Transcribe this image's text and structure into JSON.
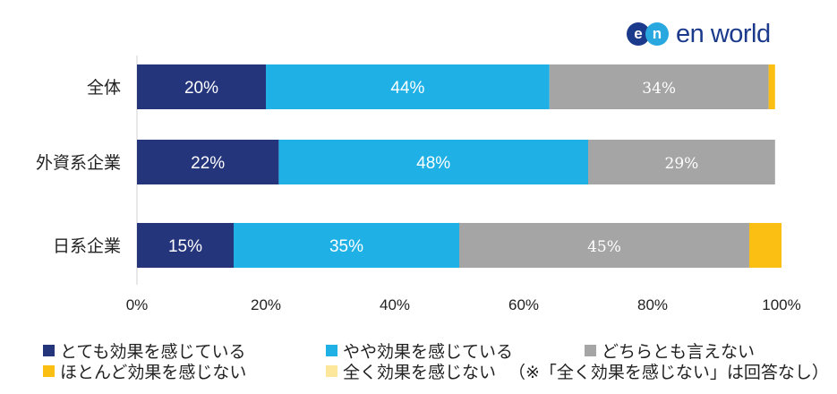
{
  "logo": {
    "text": "en world",
    "badge": [
      "e",
      "n"
    ]
  },
  "chart_data": {
    "type": "bar",
    "orientation": "horizontal",
    "stacked": true,
    "categories": [
      "全体",
      "外資系企業",
      "日系企業"
    ],
    "series": [
      {
        "name": "とても効果を感じている",
        "color": "#25357c",
        "values": [
          20,
          22,
          15
        ],
        "labels": [
          "20%",
          "22%",
          "15%"
        ]
      },
      {
        "name": "やや効果を感じている",
        "color": "#1fb1e5",
        "values": [
          44,
          48,
          35
        ],
        "labels": [
          "44%",
          "48%",
          "35%"
        ]
      },
      {
        "name": "どちらとも言えない",
        "color": "#a5a5a5",
        "values": [
          34,
          29,
          45
        ],
        "labels": [
          "34%",
          "29%",
          "45%"
        ]
      },
      {
        "name": "ほとんど効果を感じない",
        "color": "#fbbf13",
        "values": [
          1,
          0,
          5
        ],
        "labels": [
          "",
          "",
          ""
        ]
      },
      {
        "name": "全く効果を感じない",
        "color": "#fde79a",
        "values": [
          0,
          0,
          0
        ],
        "labels": [
          "",
          "",
          ""
        ]
      }
    ],
    "xlim": [
      0,
      100
    ],
    "xticks": [
      "0%",
      "20%",
      "40%",
      "60%",
      "80%",
      "100%"
    ],
    "grid": false,
    "legend_position": "bottom"
  },
  "note": "（※「全く効果を感じない」は回答なし）"
}
